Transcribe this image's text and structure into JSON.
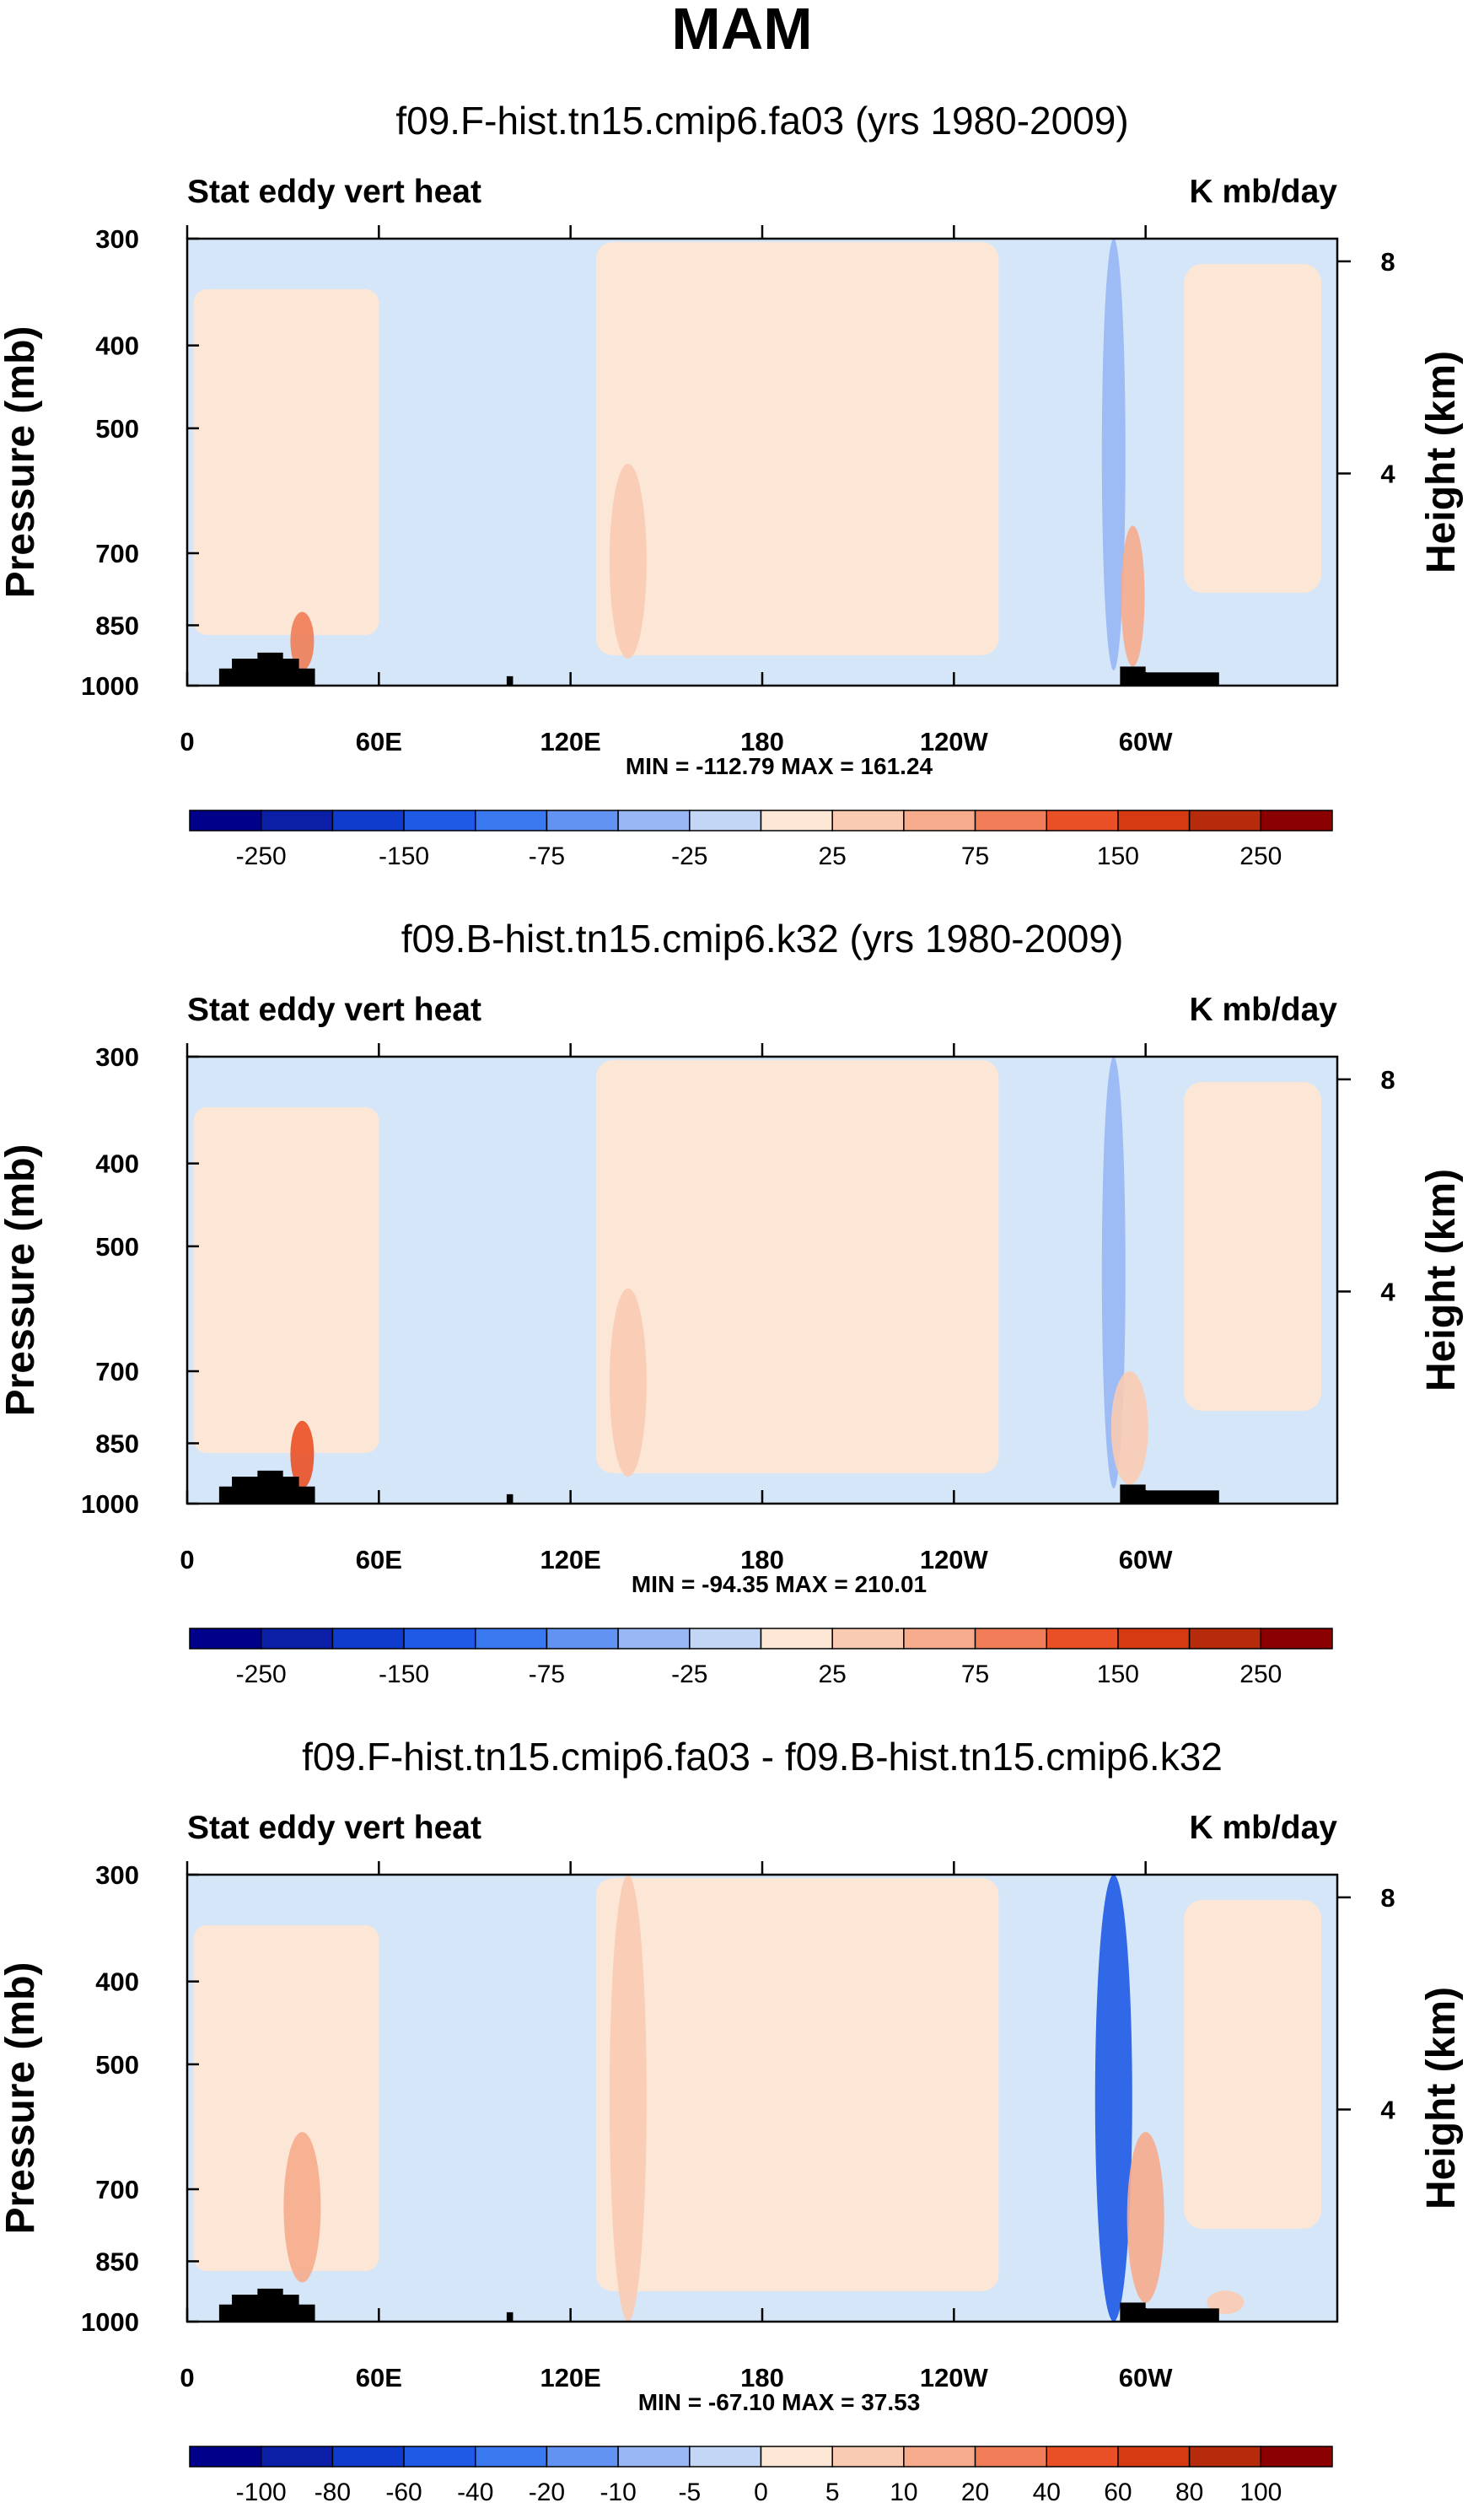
{
  "figure": {
    "title": "MAM"
  },
  "chart_data": [
    {
      "type": "heatmap",
      "title": "f09.F-hist.tn15.cmip6.fa03 (yrs 1980-2009)",
      "left_label": "Stat eddy vert heat",
      "right_label": "K mb/day",
      "xlabel": "",
      "ylabel": "Pressure (mb)",
      "ylabel_right": "Height (km)",
      "x_ticks": [
        "0",
        "60E",
        "120E",
        "180",
        "120W",
        "60W"
      ],
      "x_tick_values": [
        0,
        60,
        120,
        180,
        240,
        300
      ],
      "xlim": [
        0,
        360
      ],
      "y_ticks": [
        "300",
        "400",
        "500",
        "700",
        "850",
        "1000"
      ],
      "y_tick_values": [
        300,
        400,
        500,
        700,
        850,
        1000
      ],
      "ylim": [
        1000,
        300
      ],
      "y_right_ticks": [
        "8",
        "4"
      ],
      "y_right_tick_values": [
        8,
        4
      ],
      "stats": "MIN = -112.79   MAX = 161.24",
      "colorbar_labels": [
        "-250",
        "-150",
        "-75",
        "-25",
        "25",
        "75",
        "150",
        "250"
      ],
      "features": [
        {
          "lon": 138,
          "p_top": 550,
          "p_bottom": 930,
          "value": 30
        },
        {
          "lon": 290,
          "p_top": 300,
          "p_bottom": 960,
          "value": -60
        },
        {
          "lon": 36,
          "p_top": 820,
          "p_bottom": 960,
          "value": 80
        },
        {
          "lon": 296,
          "p_top": 650,
          "p_bottom": 950,
          "value": 50
        }
      ]
    },
    {
      "type": "heatmap",
      "title": "f09.B-hist.tn15.cmip6.k32 (yrs 1980-2009)",
      "left_label": "Stat eddy vert heat",
      "right_label": "K mb/day",
      "xlabel": "",
      "ylabel": "Pressure (mb)",
      "ylabel_right": "Height (km)",
      "x_ticks": [
        "0",
        "60E",
        "120E",
        "180",
        "120W",
        "60W"
      ],
      "x_tick_values": [
        0,
        60,
        120,
        180,
        240,
        300
      ],
      "xlim": [
        0,
        360
      ],
      "y_ticks": [
        "300",
        "400",
        "500",
        "700",
        "850",
        "1000"
      ],
      "y_tick_values": [
        300,
        400,
        500,
        700,
        850,
        1000
      ],
      "ylim": [
        1000,
        300
      ],
      "y_right_ticks": [
        "8",
        "4"
      ],
      "y_right_tick_values": [
        8,
        4
      ],
      "stats": "MIN = -94.35   MAX = 210.01",
      "colorbar_labels": [
        "-250",
        "-150",
        "-75",
        "-25",
        "25",
        "75",
        "150",
        "250"
      ],
      "features": [
        {
          "lon": 138,
          "p_top": 560,
          "p_bottom": 930,
          "value": 30
        },
        {
          "lon": 290,
          "p_top": 300,
          "p_bottom": 960,
          "value": -50
        },
        {
          "lon": 36,
          "p_top": 800,
          "p_bottom": 960,
          "value": 100
        },
        {
          "lon": 295,
          "p_top": 700,
          "p_bottom": 950,
          "value": 40
        }
      ]
    },
    {
      "type": "heatmap",
      "title": "f09.F-hist.tn15.cmip6.fa03 - f09.B-hist.tn15.cmip6.k32",
      "left_label": "Stat eddy vert heat",
      "right_label": "K mb/day",
      "xlabel": "",
      "ylabel": "Pressure (mb)",
      "ylabel_right": "Height (km)",
      "x_ticks": [
        "0",
        "60E",
        "120E",
        "180",
        "120W",
        "60W"
      ],
      "x_tick_values": [
        0,
        60,
        120,
        180,
        240,
        300
      ],
      "xlim": [
        0,
        360
      ],
      "y_ticks": [
        "300",
        "400",
        "500",
        "700",
        "850",
        "1000"
      ],
      "y_tick_values": [
        300,
        400,
        500,
        700,
        850,
        1000
      ],
      "ylim": [
        1000,
        300
      ],
      "y_right_ticks": [
        "8",
        "4"
      ],
      "y_right_tick_values": [
        8,
        4
      ],
      "stats": "MIN = -67.10   MAX =  37.53",
      "colorbar_labels": [
        "-100",
        "-80",
        "-60",
        "-40",
        "-20",
        "-10",
        "-5",
        "0",
        "5",
        "10",
        "20",
        "40",
        "60",
        "80",
        "100"
      ],
      "features": [
        {
          "lon": 36,
          "p_top": 600,
          "p_bottom": 900,
          "value": 15
        },
        {
          "lon": 138,
          "p_top": 300,
          "p_bottom": 1000,
          "value": 8
        },
        {
          "lon": 290,
          "p_top": 300,
          "p_bottom": 1000,
          "value": -30
        },
        {
          "lon": 300,
          "p_top": 600,
          "p_bottom": 950,
          "value": 12
        },
        {
          "lon": 325,
          "p_top": 920,
          "p_bottom": 980,
          "value": 8
        }
      ]
    }
  ],
  "colors": {
    "neg": [
      "#00008b",
      "#0a1ea6",
      "#0f3ccc",
      "#1f5ae6",
      "#3a78f0",
      "#6293f2",
      "#97b6f3",
      "#c3d6f5",
      "#dde9f8"
    ],
    "pos": [
      "#fde8d8",
      "#f9cbb2",
      "#f6ab8c",
      "#f07d57",
      "#ea5026",
      "#d63a12",
      "#b52b0c",
      "#8b0000"
    ],
    "background_neg": "#d5e6f8",
    "background_pos": "#fce7d7",
    "topography": "#000000"
  }
}
